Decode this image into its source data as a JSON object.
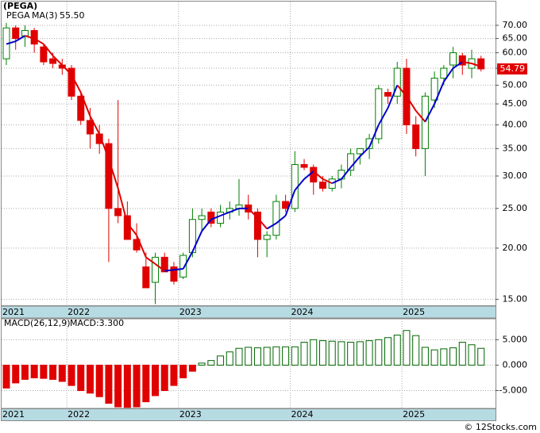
{
  "chart_data": [
    {
      "type": "candlestick",
      "title": "(PEGA)",
      "symbol": "PEGA",
      "symbol_color": "#008000",
      "categories": [
        "2021",
        null,
        null,
        null,
        null,
        null,
        null,
        "2022",
        null,
        null,
        null,
        null,
        null,
        null,
        null,
        null,
        null,
        null,
        null,
        "2023",
        null,
        null,
        null,
        null,
        null,
        null,
        null,
        null,
        null,
        null,
        null,
        "2024",
        null,
        null,
        null,
        null,
        null,
        null,
        null,
        null,
        null,
        null,
        null,
        "2025",
        null,
        null,
        null,
        null,
        null,
        null,
        null,
        null
      ],
      "open": [
        58,
        69,
        66,
        68,
        62,
        58,
        56,
        55,
        47,
        41,
        38,
        36,
        25,
        24,
        21,
        18,
        16.5,
        19,
        18,
        17,
        19.5,
        23.5,
        24.5,
        23,
        24.5,
        25,
        25.5,
        24.5,
        21,
        21.5,
        26,
        25,
        32,
        31.5,
        29,
        28,
        29.5,
        31,
        34,
        35,
        37,
        48,
        47,
        55,
        40,
        35,
        46,
        52,
        56,
        59,
        55,
        58
      ],
      "high": [
        71,
        70,
        70,
        69,
        63,
        60,
        58,
        56,
        48,
        44,
        40,
        37,
        46,
        26,
        23,
        19.5,
        19.5,
        19.5,
        18.5,
        19.5,
        25,
        25,
        25,
        25.5,
        26,
        29.5,
        27,
        25,
        22,
        27,
        27,
        34.5,
        33,
        32,
        30,
        30,
        32,
        35,
        35,
        38,
        50,
        49,
        57,
        58,
        42,
        48,
        54,
        56,
        62,
        60,
        61,
        59
      ],
      "low": [
        56,
        61,
        62,
        60,
        56,
        55,
        53,
        46,
        40,
        35,
        34,
        18.5,
        23,
        21,
        19.5,
        16,
        14.6,
        17.5,
        16.3,
        16.8,
        19,
        22,
        22.5,
        22.5,
        23.5,
        24,
        23.5,
        19,
        19,
        21,
        24.5,
        24.5,
        31,
        27,
        27.5,
        27.5,
        28,
        30,
        32,
        33,
        36,
        45,
        45,
        38,
        33.5,
        30,
        44,
        50,
        52,
        53,
        52,
        54
      ],
      "close": [
        69,
        65,
        68,
        63,
        57,
        56.5,
        55,
        47,
        41,
        38,
        36,
        25,
        24,
        21,
        19.8,
        16,
        19,
        17.5,
        16.6,
        19.2,
        23.5,
        24,
        23,
        24.5,
        25,
        25.5,
        24.5,
        21,
        21.5,
        26,
        25,
        32,
        31.5,
        29,
        28,
        29.5,
        31,
        34,
        35,
        37,
        49,
        47,
        55,
        40,
        35,
        47,
        52,
        55,
        60,
        56,
        58,
        54.79
      ],
      "ylim": [
        14.5,
        80
      ],
      "yticks": [
        {
          "value": 15,
          "label": "15.00"
        },
        {
          "value": 20,
          "label": "20.00"
        },
        {
          "value": 25,
          "label": "25.00"
        },
        {
          "value": 30,
          "label": "30.00"
        },
        {
          "value": 35,
          "label": "35.00"
        },
        {
          "value": 40,
          "label": "40.00"
        },
        {
          "value": 45,
          "label": "45.00"
        },
        {
          "value": 50,
          "label": "50.00"
        },
        {
          "value": 55,
          "label": "55.00"
        },
        {
          "value": 60,
          "label": "60.00"
        },
        {
          "value": 65,
          "label": "65.00"
        },
        {
          "value": 70,
          "label": "70.00"
        }
      ],
      "log_scale": true,
      "grid": true,
      "up_color": "#008000",
      "down_color": "#e00000",
      "last_color": "#e00000",
      "ma": {
        "name": "MA(3)",
        "value_label": "55.50",
        "up_color": "#0000cc",
        "down_color": "#dd0000",
        "values": [
          63,
          64,
          66,
          65,
          63,
          59,
          56,
          53,
          48,
          42,
          38,
          33,
          28,
          23,
          21.5,
          19,
          18.3,
          17.6,
          17.7,
          17.8,
          19.6,
          22,
          23.5,
          24,
          24.5,
          25,
          25,
          23.7,
          22.3,
          23,
          24,
          27.7,
          29.5,
          30.8,
          29.5,
          28.8,
          29.5,
          31.5,
          33.5,
          35.3,
          40,
          44,
          50,
          47,
          43.3,
          40.7,
          45,
          51,
          55,
          57,
          56.5,
          55.5
        ]
      }
    },
    {
      "type": "bar",
      "title": "MACD(26,12,9)",
      "subtitle": "MACD:3.300",
      "title_color": "#0000cc",
      "categories": [
        "2021",
        null,
        null,
        null,
        null,
        null,
        null,
        "2022",
        null,
        null,
        null,
        null,
        null,
        null,
        null,
        null,
        null,
        null,
        null,
        "2023",
        null,
        null,
        null,
        null,
        null,
        null,
        null,
        null,
        null,
        null,
        null,
        "2024",
        null,
        null,
        null,
        null,
        null,
        null,
        null,
        null,
        null,
        null,
        null,
        "2025",
        null,
        null,
        null,
        null,
        null,
        null,
        null,
        null
      ],
      "values": [
        -4.5,
        -3.5,
        -2.8,
        -2.5,
        -2.6,
        -2.8,
        -3.2,
        -4.0,
        -5.0,
        -5.5,
        -6.2,
        -7.5,
        -8.2,
        -8.3,
        -8.2,
        -7.2,
        -6.0,
        -5.0,
        -4.0,
        -2.5,
        -1.2,
        0.4,
        0.9,
        1.8,
        2.6,
        3.3,
        3.5,
        3.4,
        3.5,
        3.6,
        3.6,
        3.6,
        4.5,
        5.0,
        4.8,
        4.7,
        4.6,
        4.5,
        4.6,
        4.8,
        5.0,
        5.4,
        5.9,
        6.8,
        5.8,
        3.5,
        3.0,
        3.2,
        3.4,
        4.5,
        4.0,
        3.3
      ],
      "ylim": [
        -8.5,
        9.1
      ],
      "yticks": [
        {
          "value": -5,
          "label": "-5.000"
        },
        {
          "value": 0,
          "label": "0.000"
        },
        {
          "value": 5,
          "label": "5.000"
        }
      ],
      "grid": true,
      "pos_color": "#006600",
      "neg_color": "#e00000"
    }
  ],
  "footer": "© 12Stocks.com"
}
